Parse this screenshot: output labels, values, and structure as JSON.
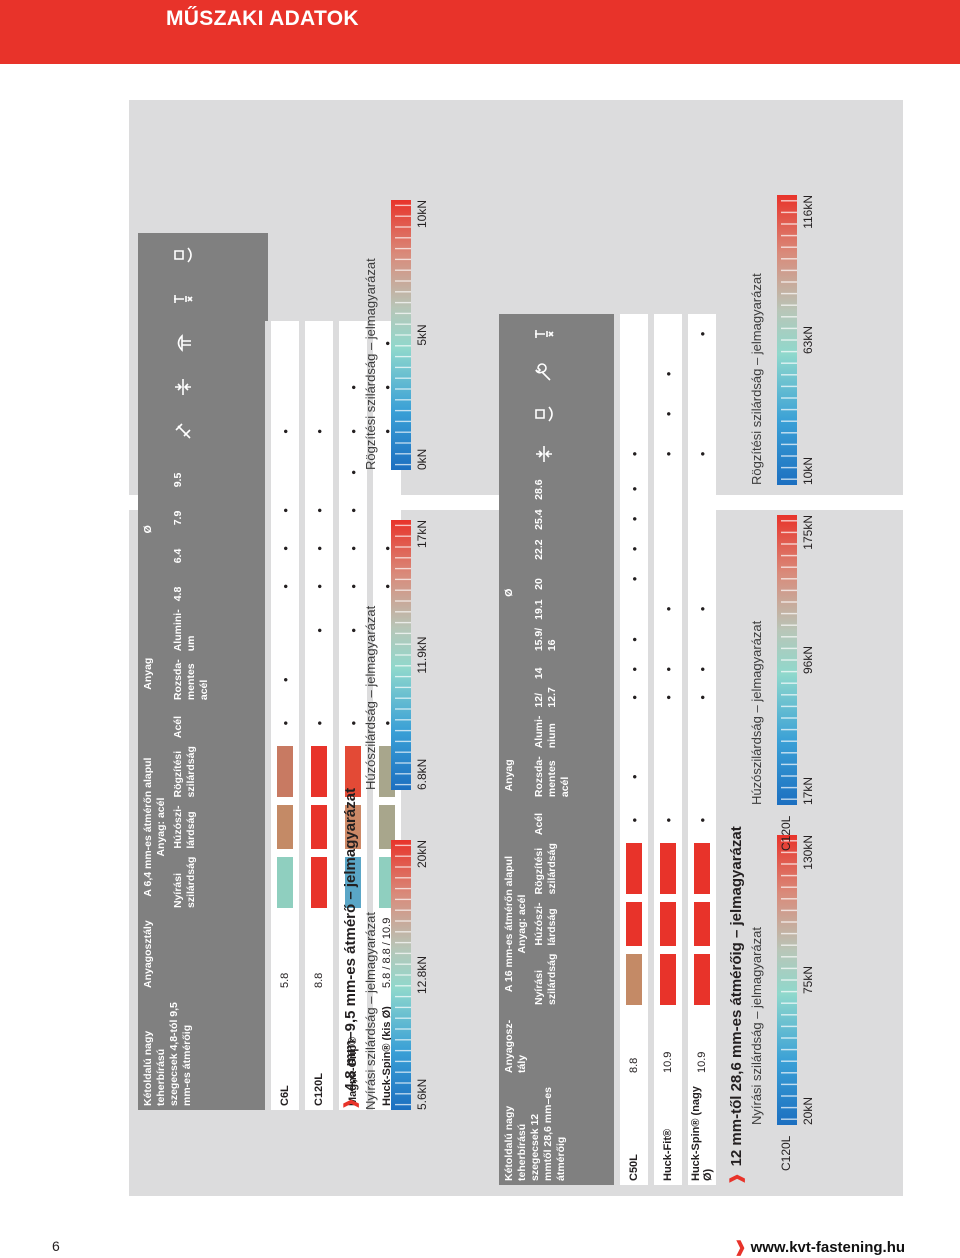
{
  "page": {
    "title": "MŰSZAKI ADATOK",
    "page_number": "6",
    "website": "www.kvt-fastening.hu",
    "accent_color": "#e8332a"
  },
  "table1": {
    "title": "Kétoldalú nagy teherbírású szegecsek 4,8-tól 9,5 mm-es átmérőig",
    "class_header": "Anyagosztály",
    "strength_group": "A 6,4 mm-es átmérőn alapul Anyag: acél",
    "strength_cols": [
      "Nyírási szilárdság",
      "Húzószi-lárdság",
      "Rögzítési szilárdság"
    ],
    "material_group": "Anyag",
    "material_cols": [
      "Acél",
      "Rozsda-mentes acél",
      "Alumini-um"
    ],
    "diameter_group": "Ø",
    "diameter_cols": [
      "4.8",
      "6.4",
      "7.9",
      "9.5"
    ],
    "icon_cols": [
      "impact-wrench-icon",
      "thickness-range-icon",
      "rivet-head-icon",
      "pin-break-icon",
      "round-head-icon"
    ],
    "rows": [
      {
        "product": "C6L",
        "class": "5.8",
        "swatches": [
          "#8fcfbf",
          "#c48a66",
          "#c87a62"
        ],
        "dots": [
          "•",
          "•",
          "",
          "•",
          "•",
          "•",
          "",
          "•",
          "",
          ""
        ]
      },
      {
        "product": "C120L",
        "class": "8.8",
        "swatches": [
          "#e8332a",
          "#e8332a",
          "#e8332a"
        ],
        "dots": [
          "•",
          "",
          "•",
          "•",
          "•",
          "•",
          "",
          "•",
          "",
          ""
        ]
      },
      {
        "product": "Magna-Grip®",
        "class": "",
        "swatches": [
          "#5aa6c7",
          "#cc8866",
          "#e34a36"
        ],
        "dots": [
          "•",
          "",
          "•",
          "•",
          "•",
          "•",
          "•",
          "•",
          "•",
          ""
        ]
      },
      {
        "product": "Huck-Spin® (kis Ø)",
        "class": "5.8 / 8.8 / 10.9",
        "swatches": [
          "#8fcfbf",
          "#a8a68c",
          "#a8a68c"
        ],
        "dots": [
          "•",
          "",
          "",
          "•",
          "•",
          "",
          "",
          "•",
          "•",
          "•"
        ]
      }
    ]
  },
  "section1": {
    "title": "4,8 mm–9,5 mm-es átmérő – jelmagyarázat",
    "legends": [
      {
        "label": "Nyírási szilárdság – jelmagyarázat",
        "ticks": [
          "5.6kN",
          "12.8kN",
          "20kN"
        ]
      },
      {
        "label": "Húzószilárdság – jelmagyarázat",
        "ticks": [
          "6.8kN",
          "11.9kN",
          "17kN"
        ]
      },
      {
        "label": "Rögzítési szilárdság – jelmagyarázat",
        "ticks": [
          "0kN",
          "5kN",
          "10kN"
        ]
      }
    ]
  },
  "table2": {
    "title": "Kétoldalú nagy teherbírású szegecsek 12 mmtől 28,6 mm–es átmérőig",
    "class_header": "Anyagosz-tály",
    "strength_group": "A 16 mm-es átmérőn alapul Anyag: acél",
    "strength_cols": [
      "Nyírási szilárdság",
      "Húzószi-lárdság",
      "Rögzítési szilárdság"
    ],
    "material_group": "Anyag",
    "material_cols": [
      "Acél",
      "Rozsda-mentes acél",
      "Alumi-nium"
    ],
    "diameter_group": "Ø",
    "diameter_cols": [
      "12/ 12.7",
      "14",
      "15.9/ 16",
      "19.1",
      "20",
      "22.2",
      "25.4",
      "28.6"
    ],
    "icon_cols": [
      "thickness-range-icon",
      "round-head-icon",
      "wrench-icon",
      "pin-break-icon"
    ],
    "rows": [
      {
        "product": "C50L",
        "class": "8.8",
        "swatches": [
          "#c48a66",
          "#e8332a",
          "#e8332a"
        ],
        "dots": [
          "•",
          "•",
          "",
          "•",
          "•",
          "•",
          "",
          "•",
          "•",
          "•",
          "•",
          "•",
          "",
          "",
          ""
        ]
      },
      {
        "product": "Huck-Fit®",
        "class": "10.9",
        "swatches": [
          "#e8332a",
          "#e8332a",
          "#e8332a"
        ],
        "dots": [
          "•",
          "",
          "",
          "•",
          "•",
          "",
          "•",
          "",
          "",
          "",
          "",
          "•",
          "•",
          "•",
          ""
        ]
      },
      {
        "product": "Huck-Spin® (nagy Ø)",
        "class": "10.9",
        "swatches": [
          "#e8332a",
          "#e8332a",
          "#e8332a"
        ],
        "dots": [
          "•",
          "",
          "",
          "•",
          "•",
          "",
          "•",
          "",
          "",
          "",
          "",
          "•",
          "",
          "",
          "•"
        ]
      }
    ]
  },
  "section2": {
    "title": "12 mm-től 28,6 mm-es átmérőig – jelmagyarázat",
    "legends": [
      {
        "label": "Nyírási szilárdság – jelmagyarázat",
        "prefix": "C120L",
        "ticks": [
          "20kN",
          "75kN",
          "130kN"
        ]
      },
      {
        "label": "Húzószilárdság – jelmagyarázat",
        "prefix": "C120L",
        "ticks": [
          "17kN",
          "96kN",
          "175kN"
        ]
      },
      {
        "label": "Rögzítési szilárdság – jelmagyarázat",
        "prefix": "",
        "ticks": [
          "10kN",
          "63kN",
          "116kN"
        ]
      }
    ]
  }
}
